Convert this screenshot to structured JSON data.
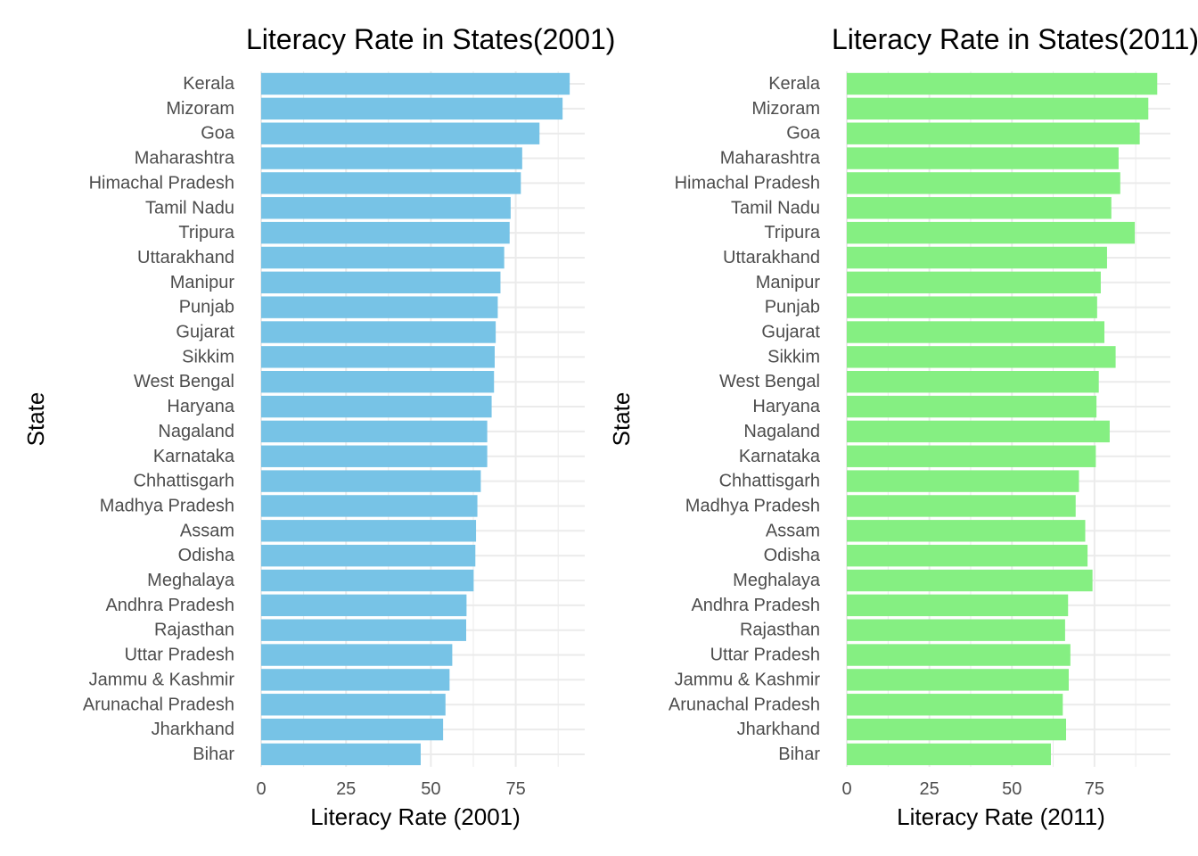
{
  "chart_data": [
    {
      "type": "bar",
      "orientation": "horizontal",
      "title": "Literacy Rate in States(2001)",
      "xlabel": "Literacy Rate (2001)",
      "ylabel": "State",
      "xlim": [
        0,
        95
      ],
      "xticks": [
        "0",
        "25",
        "50",
        "75"
      ],
      "grid": true,
      "bar_color": "#77c3e6",
      "categories": [
        "Kerala",
        "Mizoram",
        "Goa",
        "Maharashtra",
        "Himachal Pradesh",
        "Tamil Nadu",
        "Tripura",
        "Uttarakhand",
        "Manipur",
        "Punjab",
        "Gujarat",
        "Sikkim",
        "West Bengal",
        "Haryana",
        "Nagaland",
        "Karnataka",
        "Chhattisgarh",
        "Madhya Pradesh",
        "Assam",
        "Odisha",
        "Meghalaya",
        "Andhra Pradesh",
        "Rajasthan",
        "Uttar Pradesh",
        "Jammu & Kashmir",
        "Arunachal Pradesh",
        "Jharkhand",
        "Bihar"
      ],
      "values": [
        90.9,
        88.8,
        82.0,
        76.9,
        76.5,
        73.5,
        73.2,
        71.6,
        70.5,
        69.7,
        69.1,
        68.8,
        68.6,
        67.9,
        66.6,
        66.6,
        64.7,
        63.7,
        63.3,
        63.1,
        62.6,
        60.5,
        60.4,
        56.3,
        55.5,
        54.3,
        53.6,
        47.0
      ]
    },
    {
      "type": "bar",
      "orientation": "horizontal",
      "title": "Literacy Rate in States(2011)",
      "xlabel": "Literacy Rate (2011)",
      "ylabel": "State",
      "xlim": [
        0,
        98
      ],
      "xticks": [
        "0",
        "25",
        "50",
        "75"
      ],
      "grid": true,
      "bar_color": "#85ef82",
      "categories": [
        "Kerala",
        "Mizoram",
        "Goa",
        "Maharashtra",
        "Himachal Pradesh",
        "Tamil Nadu",
        "Tripura",
        "Uttarakhand",
        "Manipur",
        "Punjab",
        "Gujarat",
        "Sikkim",
        "West Bengal",
        "Haryana",
        "Nagaland",
        "Karnataka",
        "Chhattisgarh",
        "Madhya Pradesh",
        "Assam",
        "Odisha",
        "Meghalaya",
        "Andhra Pradesh",
        "Rajasthan",
        "Uttar Pradesh",
        "Jammu & Kashmir",
        "Arunachal Pradesh",
        "Jharkhand",
        "Bihar"
      ],
      "values": [
        94.0,
        91.3,
        88.7,
        82.3,
        82.8,
        80.1,
        87.2,
        78.8,
        76.9,
        75.8,
        78.0,
        81.4,
        76.3,
        75.6,
        79.6,
        75.4,
        70.3,
        69.3,
        72.2,
        72.9,
        74.4,
        67.0,
        66.1,
        67.7,
        67.2,
        65.4,
        66.4,
        61.8
      ]
    }
  ]
}
